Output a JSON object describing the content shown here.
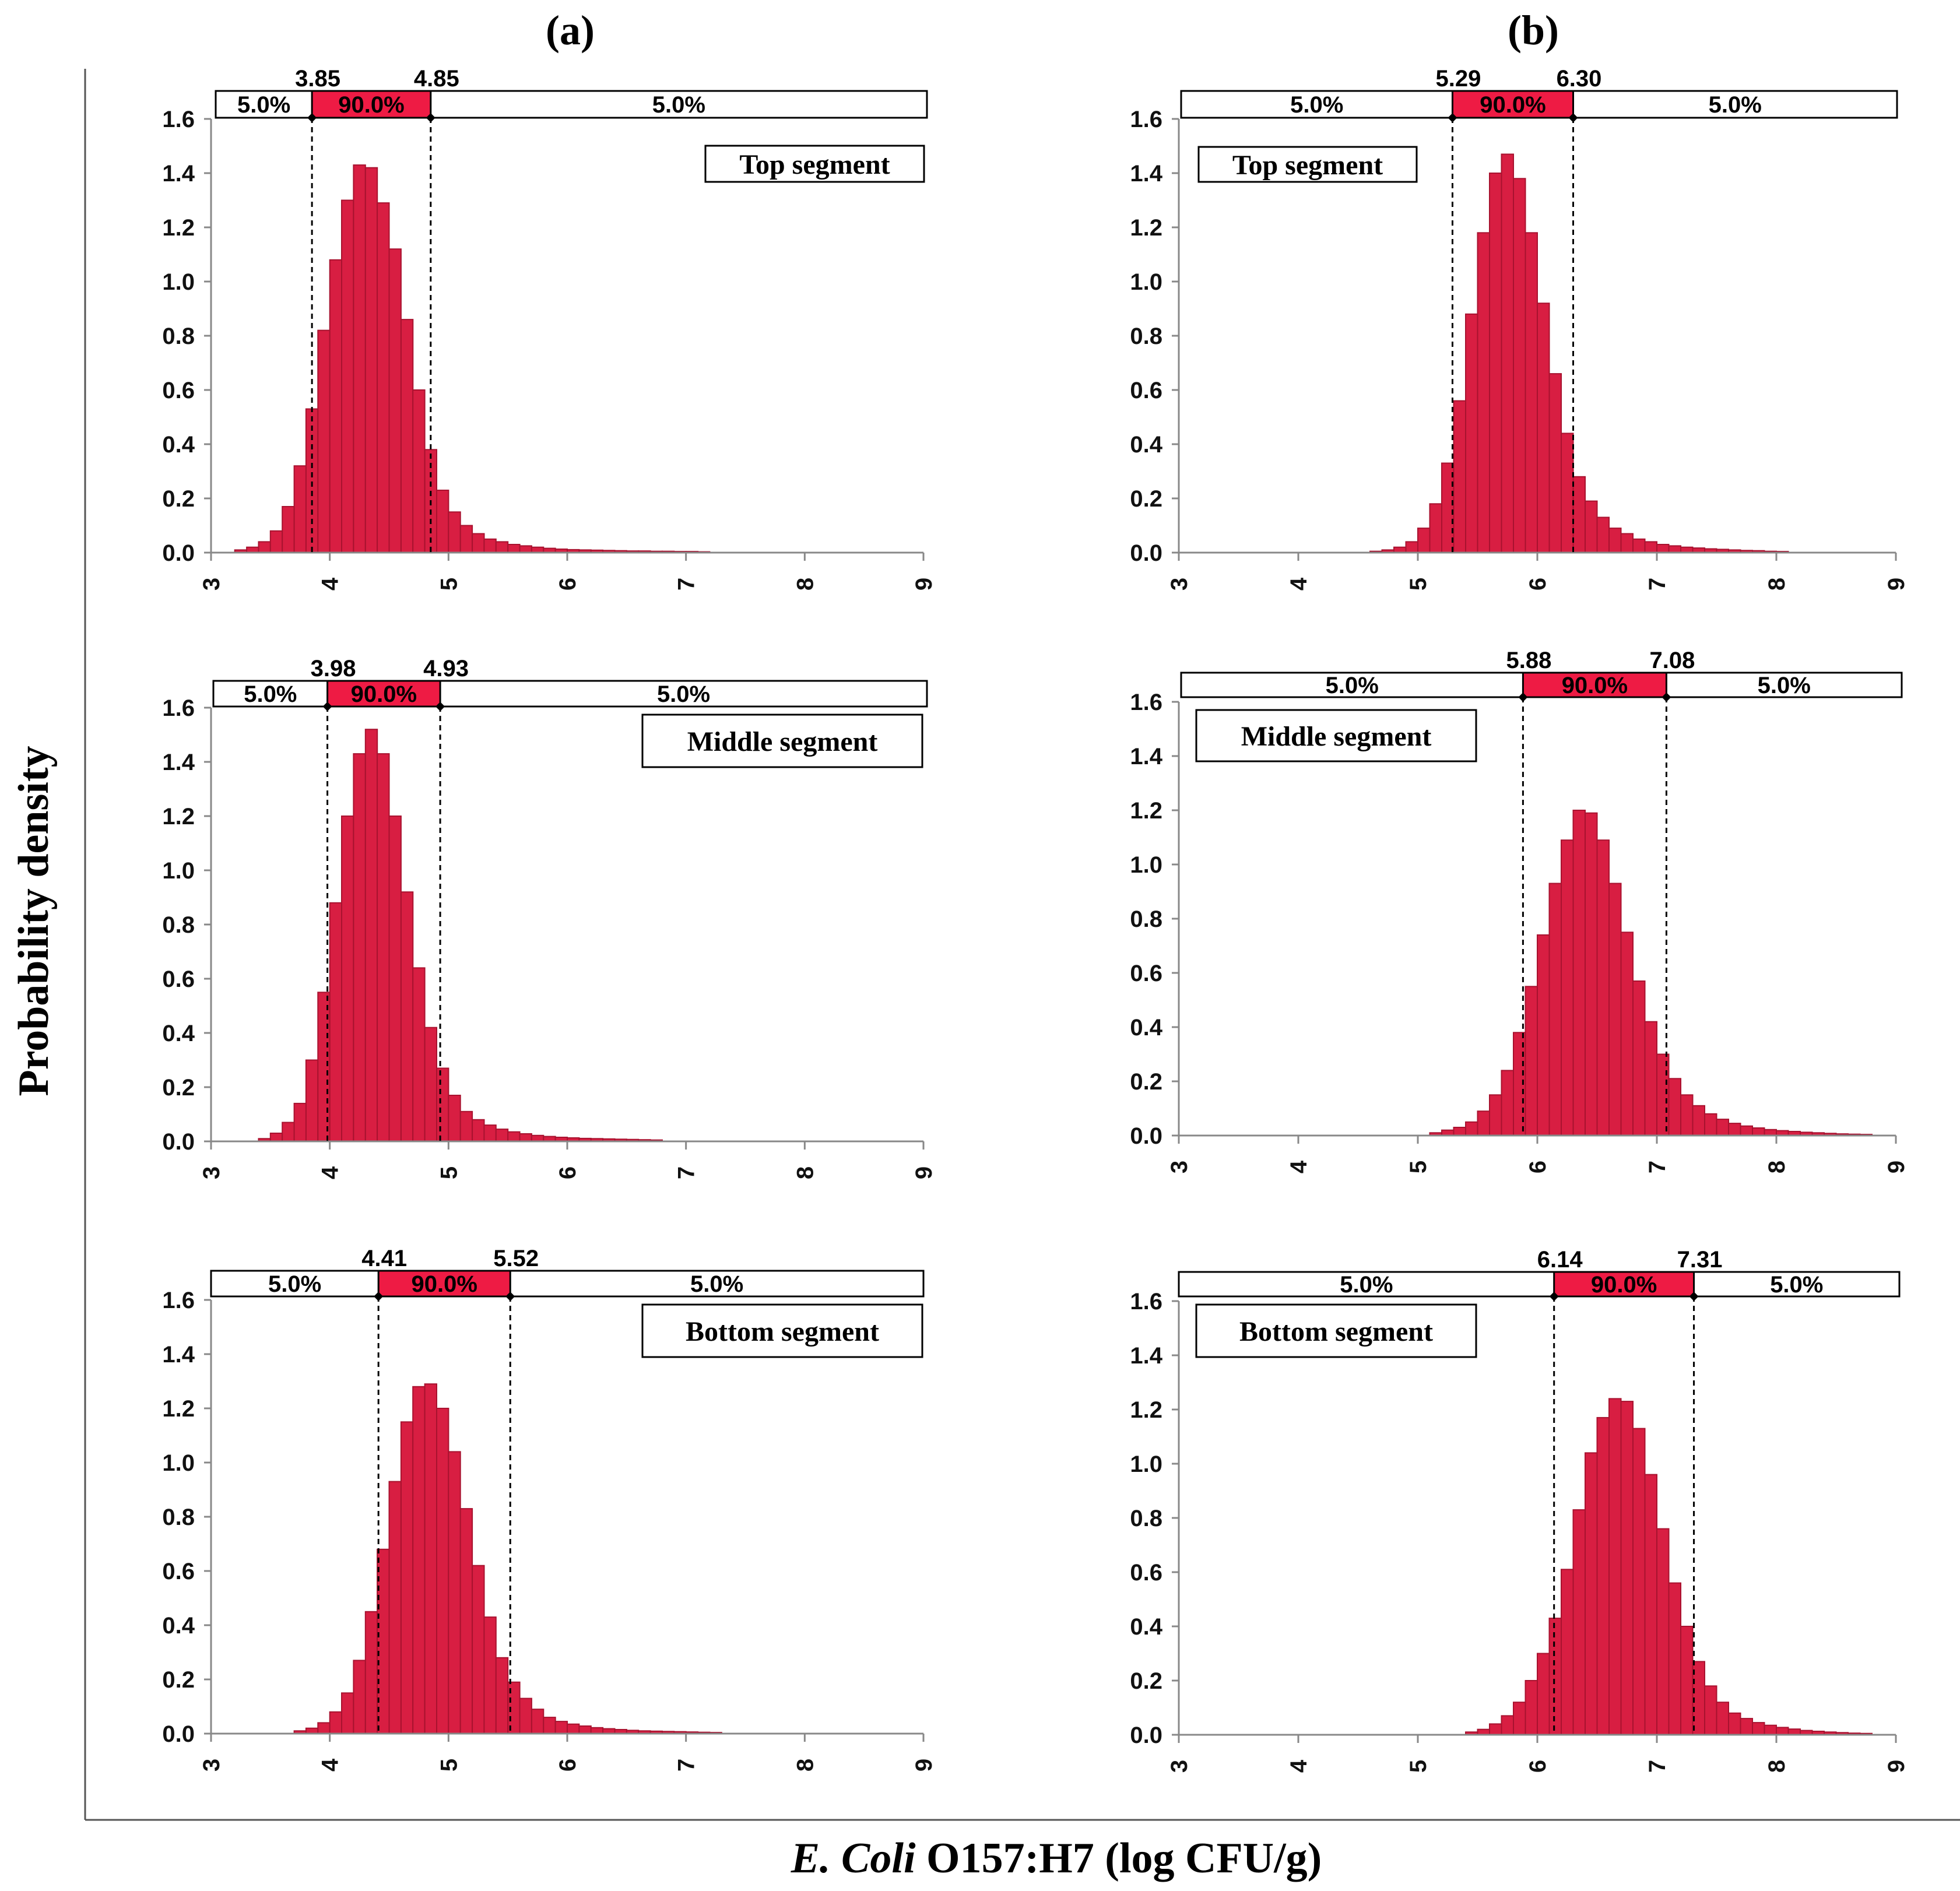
{
  "figure": {
    "ylabel": "Probability density",
    "xlabel_italic": "E. Coli",
    "xlabel_rest": " O157:H7 (log CFU/g)",
    "columns": [
      {
        "label": "(a)"
      },
      {
        "label": "(b)"
      }
    ]
  },
  "colors": {
    "bar": "#d81e42",
    "bar_edge": "#a8122f",
    "band": "#ee1b44"
  },
  "band_labels": {
    "left": "5.0%",
    "middle": "90.0%",
    "right": "5.0%"
  },
  "chart_data": [
    {
      "id": "a-top",
      "type": "bar",
      "title": "Top segment",
      "column": "(a)",
      "xlim": [
        3,
        9
      ],
      "ylim": [
        0,
        1.6
      ],
      "xticks": [
        "3",
        "4",
        "5",
        "6",
        "7",
        "8",
        "9"
      ],
      "yticks": [
        "0.0",
        "0.2",
        "0.4",
        "0.6",
        "0.8",
        "1.0",
        "1.2",
        "1.4",
        "1.6"
      ],
      "interval": {
        "low": "3.85",
        "high": "4.85",
        "left_pct": "5.0%",
        "mid_pct": "90.0%",
        "right_pct": "5.0%"
      },
      "bin_width": 0.1,
      "bins_x": [
        3.2,
        3.3,
        3.4,
        3.5,
        3.6,
        3.7,
        3.8,
        3.9,
        4.0,
        4.1,
        4.2,
        4.3,
        4.4,
        4.5,
        4.6,
        4.7,
        4.8,
        4.9,
        5.0,
        5.1,
        5.2,
        5.3,
        5.4,
        5.5,
        5.6,
        5.7,
        5.8,
        5.9,
        6.0,
        6.1,
        6.2,
        6.3,
        6.4,
        6.5,
        6.6,
        6.7,
        6.8,
        6.9,
        7.0,
        7.1
      ],
      "density": [
        0.01,
        0.02,
        0.04,
        0.08,
        0.17,
        0.32,
        0.53,
        0.82,
        1.08,
        1.3,
        1.43,
        1.42,
        1.29,
        1.12,
        0.86,
        0.6,
        0.38,
        0.23,
        0.15,
        0.1,
        0.07,
        0.05,
        0.04,
        0.03,
        0.025,
        0.02,
        0.016,
        0.013,
        0.011,
        0.01,
        0.009,
        0.008,
        0.007,
        0.006,
        0.006,
        0.005,
        0.005,
        0.004,
        0.004,
        0.003
      ]
    },
    {
      "id": "b-top",
      "type": "bar",
      "title": "Top segment",
      "column": "(b)",
      "xlim": [
        3,
        9
      ],
      "ylim": [
        0,
        1.6
      ],
      "xticks": [
        "3",
        "4",
        "5",
        "6",
        "7",
        "8",
        "9"
      ],
      "yticks": [
        "0.0",
        "0.2",
        "0.4",
        "0.6",
        "0.8",
        "1.0",
        "1.2",
        "1.4",
        "1.6"
      ],
      "interval": {
        "low": "5.29",
        "high": "6.30",
        "left_pct": "5.0%",
        "mid_pct": "90.0%",
        "right_pct": "5.0%"
      },
      "bin_width": 0.1,
      "bins_x": [
        4.6,
        4.7,
        4.8,
        4.9,
        5.0,
        5.1,
        5.2,
        5.3,
        5.4,
        5.5,
        5.6,
        5.7,
        5.8,
        5.9,
        6.0,
        6.1,
        6.2,
        6.3,
        6.4,
        6.5,
        6.6,
        6.7,
        6.8,
        6.9,
        7.0,
        7.1,
        7.2,
        7.3,
        7.4,
        7.5,
        7.6,
        7.7,
        7.8,
        7.9,
        8.0
      ],
      "density": [
        0.005,
        0.01,
        0.02,
        0.04,
        0.09,
        0.18,
        0.33,
        0.56,
        0.88,
        1.18,
        1.4,
        1.47,
        1.38,
        1.18,
        0.92,
        0.66,
        0.44,
        0.28,
        0.19,
        0.13,
        0.09,
        0.07,
        0.05,
        0.04,
        0.03,
        0.025,
        0.02,
        0.017,
        0.014,
        0.012,
        0.01,
        0.008,
        0.007,
        0.005,
        0.004
      ]
    },
    {
      "id": "a-mid",
      "type": "bar",
      "title": "Middle segment",
      "column": "(a)",
      "xlim": [
        3,
        9
      ],
      "ylim": [
        0,
        1.6
      ],
      "xticks": [
        "3",
        "4",
        "5",
        "6",
        "7",
        "8",
        "9"
      ],
      "yticks": [
        "0.0",
        "0.2",
        "0.4",
        "0.6",
        "0.8",
        "1.0",
        "1.2",
        "1.4",
        "1.6"
      ],
      "interval": {
        "low": "3.98",
        "high": "4.93",
        "left_pct": "5.0%",
        "mid_pct": "90.0%",
        "right_pct": "5.0%"
      },
      "bin_width": 0.1,
      "bins_x": [
        3.4,
        3.5,
        3.6,
        3.7,
        3.8,
        3.9,
        4.0,
        4.1,
        4.2,
        4.3,
        4.4,
        4.5,
        4.6,
        4.7,
        4.8,
        4.9,
        5.0,
        5.1,
        5.2,
        5.3,
        5.4,
        5.5,
        5.6,
        5.7,
        5.8,
        5.9,
        6.0,
        6.1,
        6.2,
        6.3,
        6.4,
        6.5,
        6.6,
        6.7
      ],
      "density": [
        0.01,
        0.03,
        0.07,
        0.14,
        0.3,
        0.55,
        0.88,
        1.2,
        1.43,
        1.52,
        1.43,
        1.2,
        0.92,
        0.64,
        0.42,
        0.27,
        0.17,
        0.11,
        0.08,
        0.06,
        0.045,
        0.035,
        0.028,
        0.022,
        0.018,
        0.015,
        0.013,
        0.011,
        0.01,
        0.009,
        0.008,
        0.007,
        0.006,
        0.005
      ]
    },
    {
      "id": "b-mid",
      "type": "bar",
      "title": "Middle segment",
      "column": "(b)",
      "xlim": [
        3,
        9
      ],
      "ylim": [
        0,
        1.6
      ],
      "xticks": [
        "3",
        "4",
        "5",
        "6",
        "7",
        "8",
        "9"
      ],
      "yticks": [
        "0.0",
        "0.2",
        "0.4",
        "0.6",
        "0.8",
        "1.0",
        "1.2",
        "1.4",
        "1.6"
      ],
      "interval": {
        "low": "5.88",
        "high": "7.08",
        "left_pct": "5.0%",
        "mid_pct": "90.0%",
        "right_pct": "5.0%"
      },
      "bin_width": 0.1,
      "bins_x": [
        5.1,
        5.2,
        5.3,
        5.4,
        5.5,
        5.6,
        5.7,
        5.8,
        5.9,
        6.0,
        6.1,
        6.2,
        6.3,
        6.4,
        6.5,
        6.6,
        6.7,
        6.8,
        6.9,
        7.0,
        7.1,
        7.2,
        7.3,
        7.4,
        7.5,
        7.6,
        7.7,
        7.8,
        7.9,
        8.0,
        8.1,
        8.2,
        8.3,
        8.4,
        8.5,
        8.6,
        8.7
      ],
      "density": [
        0.01,
        0.02,
        0.03,
        0.05,
        0.09,
        0.15,
        0.24,
        0.38,
        0.55,
        0.74,
        0.93,
        1.09,
        1.2,
        1.19,
        1.09,
        0.93,
        0.75,
        0.57,
        0.42,
        0.3,
        0.21,
        0.15,
        0.11,
        0.08,
        0.06,
        0.045,
        0.035,
        0.028,
        0.022,
        0.018,
        0.015,
        0.012,
        0.01,
        0.008,
        0.006,
        0.005,
        0.004
      ]
    },
    {
      "id": "a-bot",
      "type": "bar",
      "title": "Bottom segment",
      "column": "(a)",
      "xlim": [
        3,
        9
      ],
      "ylim": [
        0,
        1.6
      ],
      "xticks": [
        "3",
        "4",
        "5",
        "6",
        "7",
        "8",
        "9"
      ],
      "yticks": [
        "0.0",
        "0.2",
        "0.4",
        "0.6",
        "0.8",
        "1.0",
        "1.2",
        "1.4",
        "1.6"
      ],
      "interval": {
        "low": "4.41",
        "high": "5.52",
        "left_pct": "5.0%",
        "mid_pct": "90.0%",
        "right_pct": "5.0%"
      },
      "bin_width": 0.1,
      "bins_x": [
        3.7,
        3.8,
        3.9,
        4.0,
        4.1,
        4.2,
        4.3,
        4.4,
        4.5,
        4.6,
        4.7,
        4.8,
        4.9,
        5.0,
        5.1,
        5.2,
        5.3,
        5.4,
        5.5,
        5.6,
        5.7,
        5.8,
        5.9,
        6.0,
        6.1,
        6.2,
        6.3,
        6.4,
        6.5,
        6.6,
        6.7,
        6.8,
        6.9,
        7.0,
        7.1,
        7.2
      ],
      "density": [
        0.01,
        0.02,
        0.04,
        0.08,
        0.15,
        0.27,
        0.45,
        0.68,
        0.93,
        1.15,
        1.28,
        1.29,
        1.2,
        1.04,
        0.83,
        0.62,
        0.43,
        0.28,
        0.19,
        0.13,
        0.09,
        0.06,
        0.045,
        0.035,
        0.028,
        0.022,
        0.018,
        0.015,
        0.012,
        0.01,
        0.009,
        0.008,
        0.007,
        0.006,
        0.005,
        0.004
      ]
    },
    {
      "id": "b-bot",
      "type": "bar",
      "title": "Bottom segment",
      "column": "(b)",
      "xlim": [
        3,
        9
      ],
      "ylim": [
        0,
        1.6
      ],
      "xticks": [
        "3",
        "4",
        "5",
        "6",
        "7",
        "8",
        "9"
      ],
      "yticks": [
        "0.0",
        "0.2",
        "0.4",
        "0.6",
        "0.8",
        "1.0",
        "1.2",
        "1.4",
        "1.6"
      ],
      "interval": {
        "low": "6.14",
        "high": "7.31",
        "left_pct": "5.0%",
        "mid_pct": "90.0%",
        "right_pct": "5.0%"
      },
      "bin_width": 0.1,
      "bins_x": [
        5.4,
        5.5,
        5.6,
        5.7,
        5.8,
        5.9,
        6.0,
        6.1,
        6.2,
        6.3,
        6.4,
        6.5,
        6.6,
        6.7,
        6.8,
        6.9,
        7.0,
        7.1,
        7.2,
        7.3,
        7.4,
        7.5,
        7.6,
        7.7,
        7.8,
        7.9,
        8.0,
        8.1,
        8.2,
        8.3,
        8.4,
        8.5,
        8.6,
        8.7
      ],
      "density": [
        0.01,
        0.02,
        0.04,
        0.07,
        0.12,
        0.2,
        0.3,
        0.43,
        0.61,
        0.83,
        1.04,
        1.17,
        1.24,
        1.23,
        1.13,
        0.96,
        0.76,
        0.56,
        0.4,
        0.27,
        0.18,
        0.12,
        0.08,
        0.06,
        0.045,
        0.035,
        0.027,
        0.021,
        0.016,
        0.013,
        0.01,
        0.008,
        0.006,
        0.005
      ]
    }
  ]
}
